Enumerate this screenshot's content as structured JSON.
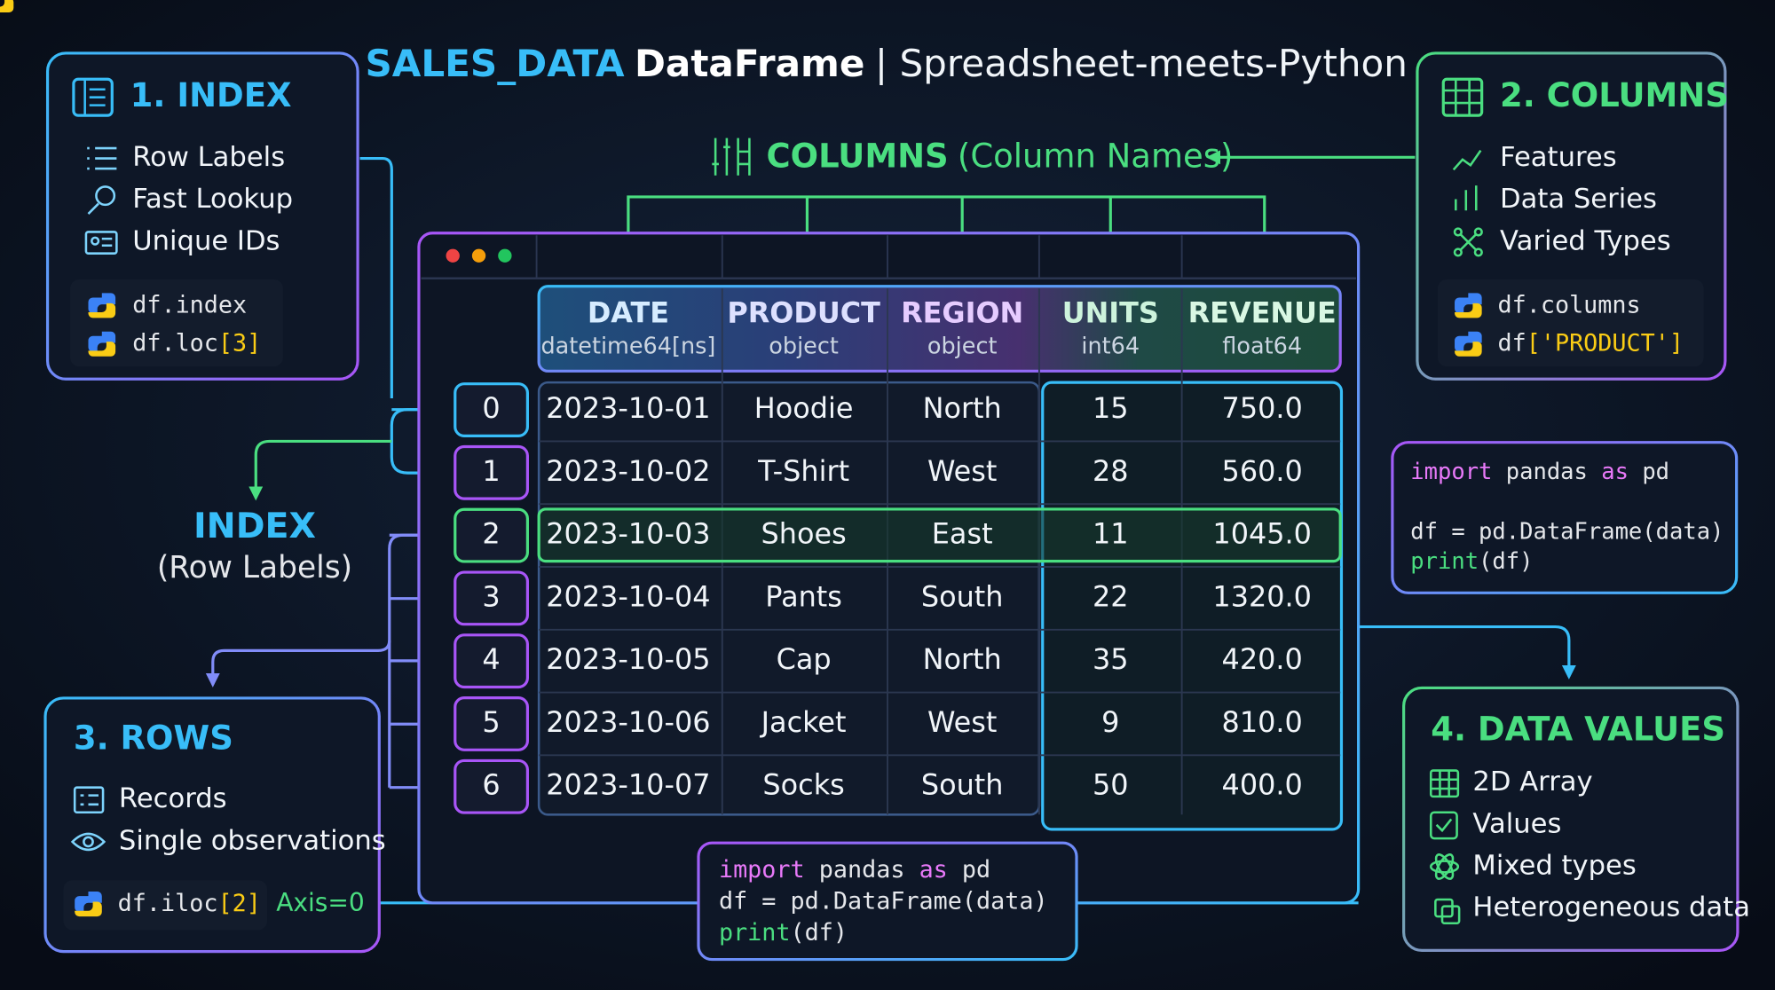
{
  "title": {
    "dataset": "SALES_DATA",
    "kind": "DataFrame",
    "subtitle": "| Spreadsheet-meets-Python"
  },
  "index_panel": {
    "title": "1. INDEX",
    "items": [
      "Row Labels",
      "Fast Lookup",
      "Unique IDs"
    ],
    "code": [
      [
        {
          "text": "df.index"
        }
      ],
      [
        {
          "text": "df.loc"
        },
        {
          "text": "[3]",
          "color": "#facc15"
        }
      ]
    ]
  },
  "columns_panel": {
    "title": "2. COLUMNS",
    "items": [
      "Features",
      "Data Series",
      "Varied Types"
    ],
    "code": [
      [
        {
          "text": "df.columns"
        }
      ],
      [
        {
          "text": "df"
        },
        {
          "text": "['PRODUCT']",
          "color": "#facc15"
        }
      ]
    ]
  },
  "rows_panel": {
    "title": "3. ROWS",
    "items": [
      "Records",
      "Single observations"
    ],
    "code": [
      {
        "text": "df.iloc"
      },
      {
        "text": "[2]",
        "color": "#facc15"
      }
    ],
    "note": "Axis=0"
  },
  "values_panel": {
    "title": "4. DATA VALUES",
    "items": [
      "2D Array",
      "Values",
      "Mixed types",
      "Heterogeneous data"
    ]
  },
  "code_snippet": [
    [
      {
        "text": "import",
        "color": "#e879f9"
      },
      {
        "text": " pandas "
      },
      {
        "text": "as",
        "color": "#e879f9"
      },
      {
        "text": " pd"
      }
    ],
    [
      {
        "text": "df = pd.DataFrame(data)"
      }
    ],
    [
      {
        "text": "print",
        "color": "#4ade80"
      },
      {
        "text": "(df)"
      }
    ]
  ],
  "table_code": [
    [
      {
        "text": "import",
        "color": "#e879f9"
      },
      {
        "text": " pandas "
      },
      {
        "text": "as",
        "color": "#e879f9"
      },
      {
        "text": " pd"
      }
    ],
    [
      {
        "text": "df = pd.DataFrame(data)"
      }
    ],
    [
      {
        "text": "print",
        "color": "#4ade80"
      },
      {
        "text": "(df)"
      }
    ]
  ],
  "columns_label": {
    "name": "COLUMNS",
    "note": "(Column Names)"
  },
  "index_label": {
    "name": "INDEX",
    "note": "(Row Labels)"
  },
  "table": {
    "columns": [
      {
        "name": "DATE",
        "dtype": "datetime64[ns]"
      },
      {
        "name": "PRODUCT",
        "dtype": "object"
      },
      {
        "name": "REGION",
        "dtype": "object"
      },
      {
        "name": "UNITS",
        "dtype": "int64"
      },
      {
        "name": "REVENUE",
        "dtype": "float64"
      }
    ],
    "index": [
      0,
      1,
      2,
      3,
      4,
      5,
      6
    ],
    "rows": [
      [
        "2023-10-01",
        "Hoodie",
        "North",
        "15",
        "750.0"
      ],
      [
        "2023-10-02",
        "T-Shirt",
        "West",
        "28",
        "560.0"
      ],
      [
        "2023-10-03",
        "Shoes",
        "East",
        "11",
        "1045.0"
      ],
      [
        "2023-10-04",
        "Pants",
        "South",
        "22",
        "1320.0"
      ],
      [
        "2023-10-05",
        "Cap",
        "North",
        "35",
        "420.0"
      ],
      [
        "2023-10-06",
        "Jacket",
        "West",
        "9",
        "810.0"
      ],
      [
        "2023-10-07",
        "Socks",
        "South",
        "50",
        "400.0"
      ]
    ]
  }
}
